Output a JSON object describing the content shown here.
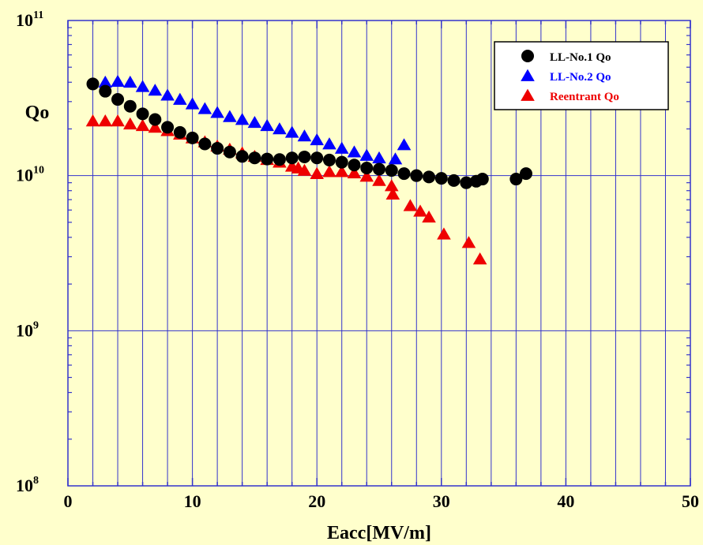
{
  "chart_data": {
    "type": "scatter",
    "xlabel": "Eacc[MV/m]",
    "ylabel": "Qo",
    "xlim": [
      0,
      50
    ],
    "ylim": [
      100000000.0,
      100000000000.0
    ],
    "yscale": "log",
    "grid": true,
    "legend_position": "top-right",
    "background_color": "#ffffcc",
    "grid_color": "#3333cc",
    "x_ticks": [
      "0",
      "10",
      "20",
      "30",
      "40",
      "50"
    ],
    "y_ticks": [
      {
        "base": "10",
        "exp": "8",
        "value": 100000000.0
      },
      {
        "base": "10",
        "exp": "9",
        "value": 1000000000.0
      },
      {
        "base": "10",
        "exp": "10",
        "value": 10000000000.0
      },
      {
        "base": "10",
        "exp": "11",
        "value": 100000000000.0
      }
    ],
    "series": [
      {
        "name": "LL-No.1 Qo",
        "marker": "circle",
        "color": "#000000",
        "text_color": "#000000",
        "points": [
          [
            2,
            39000000000.0
          ],
          [
            3,
            35000000000.0
          ],
          [
            4,
            31000000000.0
          ],
          [
            5,
            28000000000.0
          ],
          [
            6,
            25000000000.0
          ],
          [
            7,
            23000000000.0
          ],
          [
            8,
            20500000000.0
          ],
          [
            9,
            19000000000.0
          ],
          [
            10,
            17500000000.0
          ],
          [
            11,
            16000000000.0
          ],
          [
            12,
            15000000000.0
          ],
          [
            13,
            14200000000.0
          ],
          [
            14,
            13300000000.0
          ],
          [
            15,
            13000000000.0
          ],
          [
            16,
            12800000000.0
          ],
          [
            17,
            12700000000.0
          ],
          [
            18,
            13000000000.0
          ],
          [
            19,
            13200000000.0
          ],
          [
            20,
            13000000000.0
          ],
          [
            21,
            12600000000.0
          ],
          [
            22,
            12200000000.0
          ],
          [
            23,
            11700000000.0
          ],
          [
            24,
            11200000000.0
          ],
          [
            25,
            11000000000.0
          ],
          [
            26,
            10800000000.0
          ],
          [
            27,
            10300000000.0
          ],
          [
            28,
            10000000000.0
          ],
          [
            29,
            9800000000.0
          ],
          [
            30,
            9600000000.0
          ],
          [
            31,
            9300000000.0
          ],
          [
            32,
            9000000000.0
          ],
          [
            32.8,
            9200000000.0
          ],
          [
            33.3,
            9500000000.0
          ],
          [
            36,
            9500000000.0
          ],
          [
            36.8,
            10300000000.0
          ]
        ]
      },
      {
        "name": "LL-No.2 Qo",
        "marker": "triangle",
        "color": "#0000ff",
        "text_color": "#0000ff",
        "points": [
          [
            3,
            40000000000.0
          ],
          [
            4,
            40500000000.0
          ],
          [
            5,
            40000000000.0
          ],
          [
            6,
            37500000000.0
          ],
          [
            7,
            35500000000.0
          ],
          [
            8,
            33000000000.0
          ],
          [
            9,
            31000000000.0
          ],
          [
            10,
            29000000000.0
          ],
          [
            11,
            27000000000.0
          ],
          [
            12,
            25500000000.0
          ],
          [
            13,
            24000000000.0
          ],
          [
            14,
            23000000000.0
          ],
          [
            15,
            22000000000.0
          ],
          [
            16,
            21000000000.0
          ],
          [
            17,
            20000000000.0
          ],
          [
            18,
            19000000000.0
          ],
          [
            19,
            18000000000.0
          ],
          [
            20,
            17000000000.0
          ],
          [
            21,
            16000000000.0
          ],
          [
            22,
            15000000000.0
          ],
          [
            23,
            14200000000.0
          ],
          [
            24,
            13500000000.0
          ],
          [
            25,
            13000000000.0
          ],
          [
            26.3,
            12800000000.0
          ],
          [
            27,
            15800000000.0
          ]
        ]
      },
      {
        "name": "Reentrant Qo",
        "marker": "triangle",
        "color": "#ee0000",
        "text_color": "#ee0000",
        "points": [
          [
            2,
            22500000000.0
          ],
          [
            3,
            22500000000.0
          ],
          [
            4,
            22500000000.0
          ],
          [
            5,
            21500000000.0
          ],
          [
            6,
            21000000000.0
          ],
          [
            7,
            20500000000.0
          ],
          [
            8,
            19500000000.0
          ],
          [
            9,
            18500000000.0
          ],
          [
            10,
            17500000000.0
          ],
          [
            11,
            16500000000.0
          ],
          [
            12,
            15500000000.0
          ],
          [
            13,
            14800000000.0
          ],
          [
            14,
            14000000000.0
          ],
          [
            15,
            13300000000.0
          ],
          [
            16,
            12700000000.0
          ],
          [
            17,
            12200000000.0
          ],
          [
            18,
            11500000000.0
          ],
          [
            18.5,
            11200000000.0
          ],
          [
            19,
            10800000000.0
          ],
          [
            20,
            10300000000.0
          ],
          [
            21,
            10600000000.0
          ],
          [
            22,
            10600000000.0
          ],
          [
            23,
            10400000000.0
          ],
          [
            24,
            9900000000.0
          ],
          [
            25,
            9300000000.0
          ],
          [
            26,
            8600000000.0
          ],
          [
            26.1,
            7600000000.0
          ],
          [
            27.5,
            6400000000.0
          ],
          [
            28.3,
            5900000000.0
          ],
          [
            29,
            5400000000.0
          ],
          [
            30.2,
            4200000000.0
          ],
          [
            32.2,
            3700000000.0
          ],
          [
            33.1,
            2900000000.0
          ]
        ]
      }
    ]
  }
}
